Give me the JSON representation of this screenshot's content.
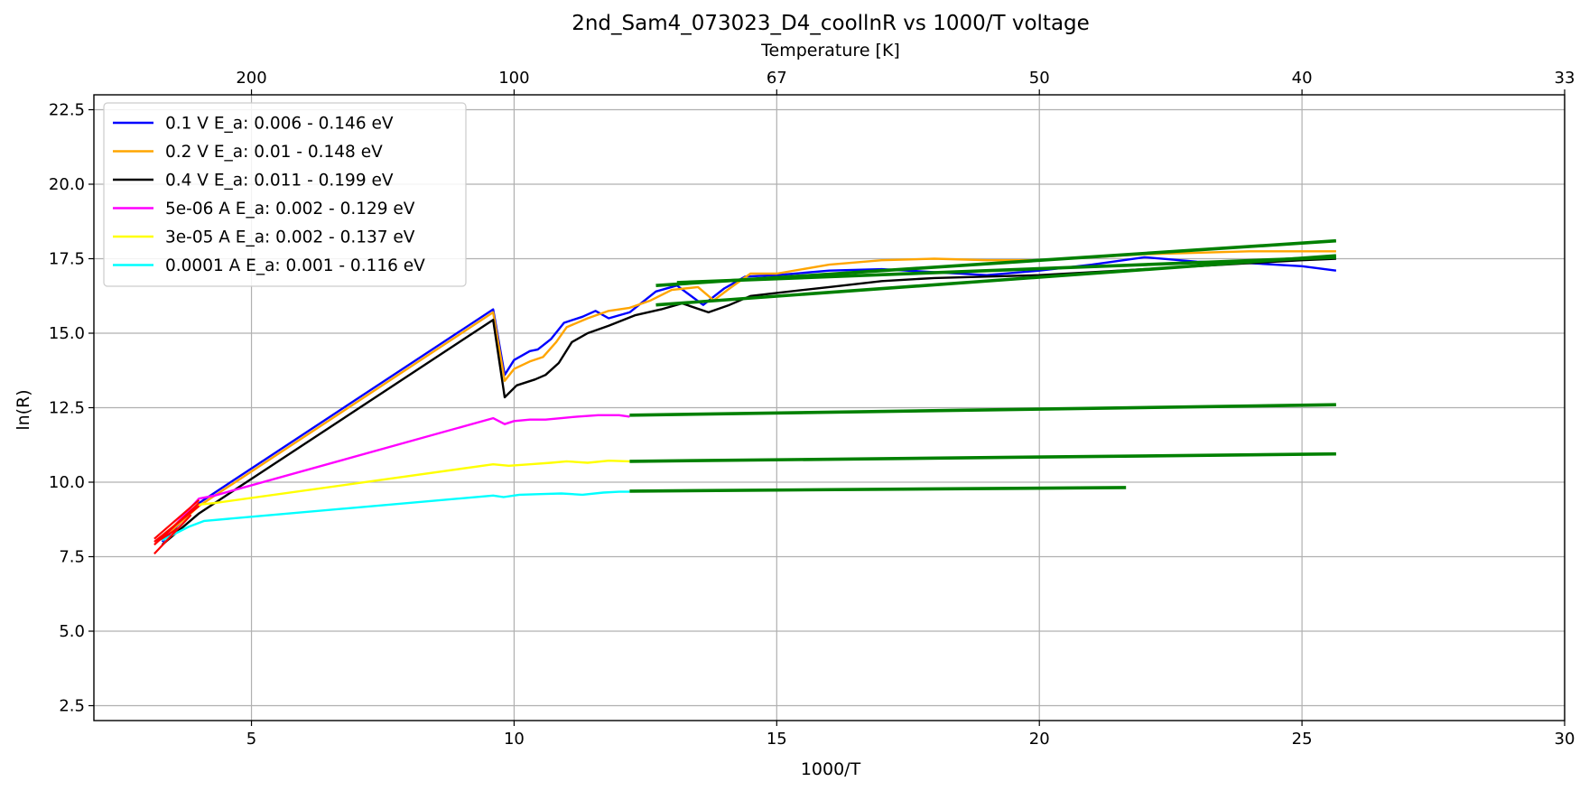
{
  "chart_data": {
    "type": "line",
    "title": "2nd_Sam4_073023_D4_coollnR vs 1000/T voltage",
    "xlabel": "1000/T",
    "ylabel": "ln(R)",
    "top_xlabel": "Temperature [K]",
    "xlim": [
      2,
      30
    ],
    "ylim": [
      2,
      23
    ],
    "x_ticks": [
      5,
      10,
      15,
      20,
      25,
      30
    ],
    "x_tick_labels": [
      "5",
      "10",
      "15",
      "20",
      "25",
      "30"
    ],
    "y_ticks": [
      2.5,
      5.0,
      7.5,
      10.0,
      12.5,
      15.0,
      17.5,
      20.0,
      22.5
    ],
    "y_tick_labels": [
      "2.5",
      "5.0",
      "7.5",
      "10.0",
      "12.5",
      "15.0",
      "17.5",
      "20.0",
      "22.5"
    ],
    "top_ticks": [
      {
        "x": 5,
        "label": "200"
      },
      {
        "x": 10,
        "label": "100"
      },
      {
        "x": 15,
        "label": "67"
      },
      {
        "x": 20,
        "label": "50"
      },
      {
        "x": 25,
        "label": "40"
      },
      {
        "x": 30,
        "label": "33"
      }
    ],
    "grid": true,
    "legend_position": "top-left",
    "series": [
      {
        "name": "0.1 V  E_a: 0.006 - 0.146 eV",
        "color": "#0000ff",
        "points": [
          [
            3.3,
            8.0
          ],
          [
            4.0,
            9.3
          ],
          [
            9.6,
            15.8
          ],
          [
            9.82,
            13.6
          ],
          [
            10.0,
            14.1
          ],
          [
            10.3,
            14.4
          ],
          [
            10.45,
            14.45
          ],
          [
            10.7,
            14.8
          ],
          [
            10.95,
            15.35
          ],
          [
            11.3,
            15.55
          ],
          [
            11.55,
            15.75
          ],
          [
            11.8,
            15.5
          ],
          [
            12.2,
            15.7
          ],
          [
            12.7,
            16.4
          ],
          [
            13.1,
            16.6
          ],
          [
            13.6,
            15.95
          ],
          [
            14.0,
            16.5
          ],
          [
            14.4,
            16.9
          ],
          [
            15.0,
            16.95
          ],
          [
            16.0,
            17.1
          ],
          [
            17.0,
            17.15
          ],
          [
            18.0,
            17.05
          ],
          [
            19.0,
            16.95
          ],
          [
            20.0,
            17.1
          ],
          [
            21.0,
            17.3
          ],
          [
            22.0,
            17.55
          ],
          [
            23.0,
            17.4
          ],
          [
            24.0,
            17.35
          ],
          [
            25.0,
            17.25
          ],
          [
            25.65,
            17.1
          ]
        ]
      },
      {
        "name": "0.2 V  E_a: 0.01 - 0.148 eV",
        "color": "#ffa500",
        "points": [
          [
            3.3,
            8.1
          ],
          [
            4.0,
            9.2
          ],
          [
            9.6,
            15.7
          ],
          [
            9.82,
            13.4
          ],
          [
            10.0,
            13.8
          ],
          [
            10.3,
            14.05
          ],
          [
            10.55,
            14.2
          ],
          [
            10.8,
            14.7
          ],
          [
            11.0,
            15.2
          ],
          [
            11.4,
            15.5
          ],
          [
            11.8,
            15.75
          ],
          [
            12.2,
            15.85
          ],
          [
            12.6,
            16.1
          ],
          [
            13.0,
            16.45
          ],
          [
            13.5,
            16.55
          ],
          [
            13.8,
            16.1
          ],
          [
            14.1,
            16.5
          ],
          [
            14.5,
            17.0
          ],
          [
            15.0,
            17.0
          ],
          [
            16.0,
            17.3
          ],
          [
            17.0,
            17.45
          ],
          [
            18.0,
            17.5
          ],
          [
            19.0,
            17.45
          ],
          [
            20.0,
            17.45
          ],
          [
            21.0,
            17.55
          ],
          [
            22.0,
            17.65
          ],
          [
            23.0,
            17.7
          ],
          [
            24.0,
            17.75
          ],
          [
            25.0,
            17.75
          ],
          [
            25.65,
            17.75
          ]
        ]
      },
      {
        "name": "0.4 V  E_a: 0.011 - 0.199 eV",
        "color": "#000000",
        "points": [
          [
            3.3,
            7.9
          ],
          [
            4.0,
            8.95
          ],
          [
            9.6,
            15.45
          ],
          [
            9.82,
            12.85
          ],
          [
            10.05,
            13.25
          ],
          [
            10.4,
            13.45
          ],
          [
            10.6,
            13.6
          ],
          [
            10.85,
            14.0
          ],
          [
            11.1,
            14.7
          ],
          [
            11.4,
            15.0
          ],
          [
            11.8,
            15.25
          ],
          [
            12.3,
            15.6
          ],
          [
            12.8,
            15.8
          ],
          [
            13.2,
            16.0
          ],
          [
            13.7,
            15.7
          ],
          [
            14.1,
            15.95
          ],
          [
            14.5,
            16.25
          ],
          [
            15.0,
            16.35
          ],
          [
            16.0,
            16.55
          ],
          [
            17.0,
            16.75
          ],
          [
            18.0,
            16.85
          ],
          [
            19.0,
            16.9
          ],
          [
            20.0,
            16.95
          ],
          [
            21.0,
            17.05
          ],
          [
            22.0,
            17.15
          ],
          [
            23.0,
            17.25
          ],
          [
            24.0,
            17.35
          ],
          [
            25.0,
            17.45
          ],
          [
            25.65,
            17.5
          ]
        ]
      },
      {
        "name": "5e-06 A E_a: 0.002 - 0.129 eV",
        "color": "#ff00ff",
        "points": [
          [
            3.3,
            8.1
          ],
          [
            4.0,
            9.45
          ],
          [
            4.3,
            9.55
          ],
          [
            9.6,
            12.15
          ],
          [
            9.82,
            11.95
          ],
          [
            10.0,
            12.05
          ],
          [
            10.3,
            12.1
          ],
          [
            10.6,
            12.1
          ],
          [
            10.9,
            12.15
          ],
          [
            11.2,
            12.2
          ],
          [
            11.6,
            12.25
          ],
          [
            12.0,
            12.25
          ],
          [
            12.2,
            12.2
          ]
        ]
      },
      {
        "name": "3e-05 A E_a: 0.002 - 0.137 eV",
        "color": "#ffff00",
        "points": [
          [
            3.3,
            8.2
          ],
          [
            4.0,
            9.25
          ],
          [
            4.3,
            9.3
          ],
          [
            9.6,
            10.6
          ],
          [
            9.9,
            10.55
          ],
          [
            10.3,
            10.6
          ],
          [
            10.7,
            10.65
          ],
          [
            11.0,
            10.7
          ],
          [
            11.4,
            10.65
          ],
          [
            11.8,
            10.72
          ],
          [
            12.2,
            10.7
          ]
        ]
      },
      {
        "name": "0.0001 A E_a: 0.001 - 0.116 eV",
        "color": "#00ffff",
        "points": [
          [
            3.3,
            8.05
          ],
          [
            3.8,
            8.5
          ],
          [
            4.1,
            8.7
          ],
          [
            9.6,
            9.55
          ],
          [
            9.8,
            9.5
          ],
          [
            10.1,
            9.58
          ],
          [
            10.5,
            9.6
          ],
          [
            10.9,
            9.62
          ],
          [
            11.3,
            9.58
          ],
          [
            11.7,
            9.65
          ],
          [
            12.0,
            9.68
          ],
          [
            12.2,
            9.68
          ]
        ]
      }
    ],
    "fit_lines": [
      {
        "color": "#008000",
        "points": [
          [
            12.7,
            16.6
          ],
          [
            25.65,
            18.1
          ]
        ]
      },
      {
        "color": "#008000",
        "points": [
          [
            12.7,
            15.95
          ],
          [
            25.65,
            17.6
          ]
        ]
      },
      {
        "color": "#008000",
        "points": [
          [
            13.1,
            16.7
          ],
          [
            25.65,
            17.55
          ]
        ]
      },
      {
        "color": "#008000",
        "points": [
          [
            12.2,
            12.25
          ],
          [
            25.65,
            12.6
          ]
        ]
      },
      {
        "color": "#008000",
        "points": [
          [
            12.2,
            10.7
          ],
          [
            25.65,
            10.95
          ]
        ]
      },
      {
        "color": "#008000",
        "points": [
          [
            12.2,
            9.7
          ],
          [
            21.65,
            9.82
          ]
        ]
      }
    ],
    "low_fit_lines": [
      {
        "color": "#ff0000",
        "points": [
          [
            3.15,
            7.6
          ],
          [
            3.85,
            8.9
          ]
        ]
      },
      {
        "color": "#ff0000",
        "points": [
          [
            3.15,
            7.9
          ],
          [
            4.0,
            9.3
          ]
        ]
      },
      {
        "color": "#ff0000",
        "points": [
          [
            3.15,
            8.0
          ],
          [
            4.0,
            9.2
          ]
        ]
      },
      {
        "color": "#ff0000",
        "points": [
          [
            3.15,
            8.1
          ],
          [
            4.0,
            9.4
          ]
        ]
      },
      {
        "color": "#ff0000",
        "points": [
          [
            3.2,
            8.0
          ],
          [
            3.6,
            8.45
          ]
        ]
      }
    ]
  }
}
